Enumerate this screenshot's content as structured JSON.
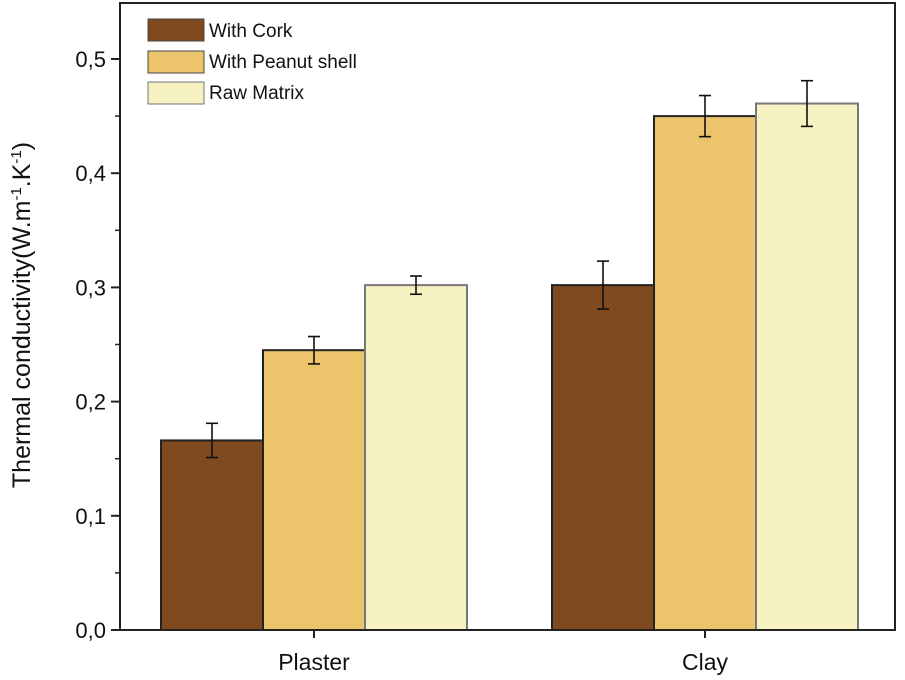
{
  "chart_data": {
    "type": "bar",
    "categories": [
      "Plaster",
      "Clay"
    ],
    "series": [
      {
        "name": "With Cork",
        "values": [
          0.166,
          0.302
        ],
        "errors": [
          0.015,
          0.021
        ],
        "color": "#7f4a1f"
      },
      {
        "name": "With Peanut shell",
        "values": [
          0.245,
          0.45
        ],
        "errors": [
          0.012,
          0.018
        ],
        "color": "#ecc46c"
      },
      {
        "name": "Raw Matrix",
        "values": [
          0.302,
          0.461
        ],
        "errors": [
          0.008,
          0.02
        ],
        "color": "#f6f2c2"
      }
    ],
    "ylabel_main": "Thermal conductivity(W.m",
    "ylabel_sup1": "-1",
    "ylabel_mid": ".K",
    "ylabel_sup2": "-1",
    "ylabel_end": ")",
    "xlabel": "",
    "ylim": [
      0,
      0.55
    ],
    "yticks": [
      0.0,
      0.1,
      0.2,
      0.3,
      0.4,
      0.5
    ],
    "ytick_labels": [
      "0,0",
      "0,1",
      "0,2",
      "0,3",
      "0,4",
      "0,5"
    ],
    "legend_position": "top-left"
  }
}
